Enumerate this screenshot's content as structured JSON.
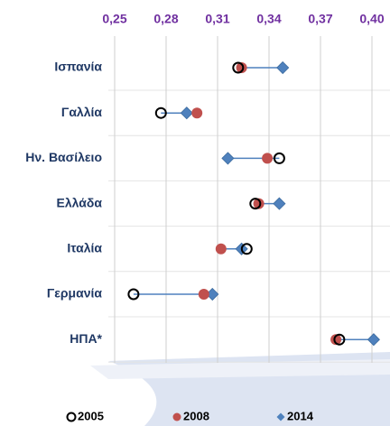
{
  "chart_data": {
    "type": "dotplot",
    "categories": [
      "Ισπανία",
      "Γαλλία",
      "Ην. Βασίλειο",
      "Ελλάδα",
      "Ιταλία",
      "Γερμανία",
      "ΗΠΑ*"
    ],
    "series": [
      {
        "name": "2005",
        "color": "#000000",
        "values": [
          0.322,
          0.277,
          0.346,
          0.332,
          0.327,
          0.261,
          0.381
        ]
      },
      {
        "name": "2008",
        "color": "#c0504d",
        "values": [
          0.324,
          0.298,
          0.339,
          0.334,
          0.312,
          0.302,
          0.379
        ]
      },
      {
        "name": "2014",
        "color": "#4f81bd",
        "values": [
          0.348,
          0.292,
          0.316,
          0.346,
          0.324,
          0.307,
          0.401
        ]
      }
    ],
    "xlim": [
      0.24,
      0.41
    ],
    "xticks": [
      {
        "value": 0.25,
        "label": "0,25"
      },
      {
        "value": 0.28,
        "label": "0,28"
      },
      {
        "value": 0.31,
        "label": "0,31"
      },
      {
        "value": 0.34,
        "label": "0,34"
      },
      {
        "value": 0.37,
        "label": "0,37"
      },
      {
        "value": 0.4,
        "label": "0,40"
      }
    ],
    "grid": true
  }
}
